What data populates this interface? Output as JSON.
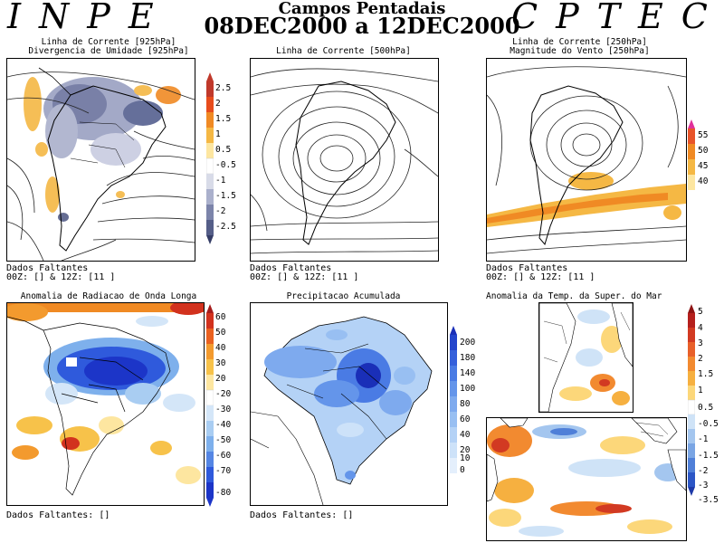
{
  "header": {
    "brand_left": "INPE",
    "brand_right": "CPTEC",
    "title": "Campos Pentadais",
    "period": "08DEC2000 a 12DEC2000"
  },
  "panels": {
    "streamline_925": {
      "title_line1": "Linha de Corrente [925hPa]",
      "title_line2": "Divergencia de Umidade [925hPa]",
      "missing_line1": "Dados Faltantes",
      "missing_line2": "00Z: [] & 12Z: [11 ]",
      "colorbar": {
        "labels": [
          "2.5",
          "2",
          "1.5",
          "1",
          "0.5",
          "-0.5",
          "-1",
          "-1.5",
          "-2",
          "-2.5"
        ],
        "colors": [
          "#c0392b",
          "#e74c1c",
          "#f08a24",
          "#f5b844",
          "#fde6a0",
          "#ffffff",
          "#d8dbe8",
          "#aab0cc",
          "#7c84aa",
          "#555e88",
          "#353d66"
        ]
      }
    },
    "streamline_500": {
      "title_line1": "Linha de Corrente [500hPa]",
      "missing_line1": "Dados Faltantes",
      "missing_line2": "00Z: [] & 12Z: [11 ]"
    },
    "streamline_250": {
      "title_line1": "Linha de Corrente [250hPa]",
      "title_line2": "Magnitude do Vento [250hPa]",
      "missing_line1": "Dados Faltantes",
      "missing_line2": "00Z: [] & 12Z: [11 ]",
      "colorbar": {
        "labels": [
          "55",
          "50",
          "45",
          "40"
        ],
        "colors": [
          "#e0309a",
          "#e8542a",
          "#f08a24",
          "#f5b844",
          "#fde6a0"
        ]
      }
    },
    "olr": {
      "title_line1": "Anomalia de Radiacao de Onda Longa",
      "missing_line1": "Dados Faltantes: []",
      "colorbar": {
        "labels": [
          "60",
          "50",
          "40",
          "30",
          "20",
          "-20",
          "-30",
          "-40",
          "-50",
          "-60",
          "-70",
          "-80"
        ],
        "colors": [
          "#a51c1c",
          "#d2321e",
          "#ea6120",
          "#f39a2e",
          "#f7c24a",
          "#fde6a0",
          "#ffffff",
          "#d4e6f8",
          "#a9cdf2",
          "#7eb0ec",
          "#5586e4",
          "#2f5adc",
          "#1c35c8"
        ]
      }
    },
    "precip": {
      "title_line1": "Precipitacao Acumulada",
      "missing_line1": "Dados Faltantes: []",
      "colorbar": {
        "labels": [
          "200",
          "180",
          "140",
          "100",
          "80",
          "60",
          "40",
          "20",
          "10",
          "0"
        ],
        "colors": [
          "#1a2fb8",
          "#2445cc",
          "#3560db",
          "#4a7be4",
          "#6495ea",
          "#7eaaee",
          "#98bff2",
          "#b4d2f6",
          "#cde2f9",
          "#e4effc"
        ]
      }
    },
    "sst": {
      "title_line1": "Anomalia da Temp. da Super. do Mar",
      "colorbar": {
        "labels": [
          "5",
          "4",
          "3",
          "2",
          "1.5",
          "1",
          "0.5",
          "-0.5",
          "-1",
          "-1.5",
          "-2",
          "-3",
          "-3.5"
        ],
        "colors": [
          "#8e1414",
          "#b5201d",
          "#d23a22",
          "#e8602a",
          "#f28a30",
          "#f6b040",
          "#fcd77a",
          "#ffffff",
          "#cfe3f7",
          "#a4c6ef",
          "#7aa5e4",
          "#4f7fd8",
          "#2c56c6",
          "#1e3aa8"
        ]
      }
    }
  }
}
